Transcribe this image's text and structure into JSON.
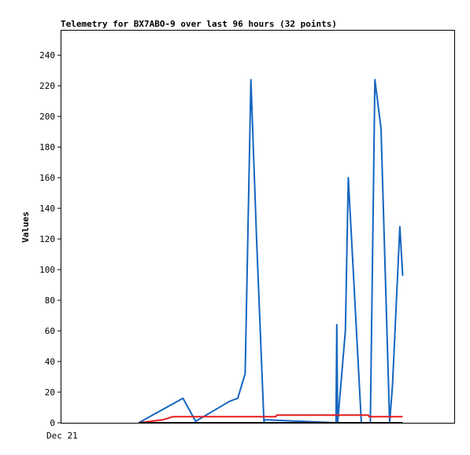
{
  "chart_data": {
    "type": "line",
    "title": "Telemetry for BX7ABO-9 over last 96 hours (32 points)",
    "xlabel": "",
    "ylabel": "Values",
    "x_tick_labels": [
      "Dec 21"
    ],
    "yticks": [
      0,
      20,
      40,
      60,
      80,
      100,
      120,
      140,
      160,
      180,
      200,
      220,
      240
    ],
    "ylim": [
      0,
      256
    ],
    "xlim": [
      0,
      96
    ],
    "grid": false,
    "legend": "none",
    "series": [
      {
        "color": "#1565c0",
        "points": [
          [
            18.9,
            0
          ],
          [
            29.7,
            16
          ],
          [
            32.8,
            1
          ],
          [
            41.1,
            14
          ],
          [
            43.1,
            16
          ],
          [
            44.9,
            32
          ],
          [
            46.3,
            224
          ],
          [
            47.7,
            120
          ],
          [
            49.5,
            0
          ],
          [
            49.6,
            2
          ],
          [
            67.1,
            0
          ],
          [
            67.3,
            64
          ],
          [
            67.5,
            0
          ],
          [
            69.4,
            60
          ],
          [
            70.1,
            160
          ],
          [
            73.3,
            0
          ],
          [
            75.5,
            0
          ],
          [
            76.6,
            224
          ],
          [
            78.1,
            192
          ],
          [
            80.2,
            0
          ],
          [
            80.9,
            24
          ],
          [
            82.7,
            128
          ],
          [
            83.4,
            96
          ]
        ]
      },
      {
        "color": "#e51c1c",
        "points": [
          [
            18.9,
            0
          ],
          [
            24.9,
            2
          ],
          [
            27.3,
            4
          ],
          [
            52.4,
            4
          ],
          [
            52.6,
            5
          ],
          [
            75.0,
            5
          ],
          [
            75.2,
            4
          ],
          [
            83.4,
            4
          ]
        ]
      },
      {
        "color": "#000000",
        "points": [
          [
            18.9,
            0
          ],
          [
            83.4,
            0
          ]
        ]
      }
    ]
  }
}
